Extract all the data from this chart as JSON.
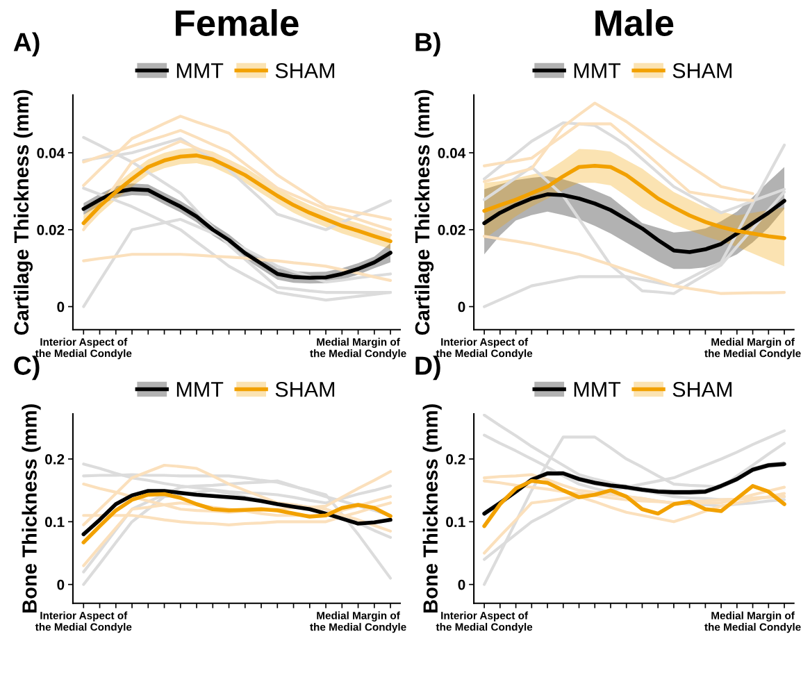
{
  "chart_data": [
    {
      "type": "line",
      "title": "Female",
      "ylabel": "Cartilage Thickness (mm)",
      "annotations": [
        "A)"
      ],
      "legend": "top",
      "categories": [
        "Interior Aspect of\nthe Medial Condyle",
        null,
        null,
        null,
        null,
        null,
        null,
        null,
        null,
        null,
        null,
        null,
        null,
        null,
        null,
        null,
        null,
        "Medial Margin of\nthe Medial Condyle",
        null,
        null
      ],
      "ylim": [
        -0.006,
        0.055
      ],
      "yticks": [
        0,
        0.02,
        0.04
      ],
      "series": [
        {
          "color": "#dcdcdc",
          "values": [
            0.044,
            0.0419,
            0.0397,
            0.0376,
            0.0349,
            0.0322,
            0.0295,
            0.025,
            0.0205,
            0.016,
            0.0123,
            0.0087,
            0.005,
            0.0046,
            0.0041,
            0.0037,
            0.0037,
            0.0037,
            0.0037,
            0.0037
          ]
        },
        {
          "color": "#dcdcdc",
          "values": [
            0,
            0.0067,
            0.0133,
            0.02,
            0.0209,
            0.0218,
            0.0227,
            0.0209,
            0.0191,
            0.0173,
            0.015,
            0.0128,
            0.0105,
            0.0091,
            0.0078,
            0.0064,
            0.0069,
            0.0075,
            0.008,
            0.0085
          ]
        },
        {
          "color": "#dcdcdc",
          "values": [
            0.038,
            0.0387,
            0.0393,
            0.04,
            0.0412,
            0.0425,
            0.0437,
            0.041,
            0.0383,
            0.0356,
            0.0317,
            0.0279,
            0.024,
            0.0227,
            0.0213,
            0.02,
            0.0219,
            0.0238,
            0.0256,
            0.0275
          ]
        },
        {
          "color": "#dcdcdc",
          "values": [
            0.0308,
            0.0292,
            0.0276,
            0.026,
            0.024,
            0.022,
            0.02,
            0.0168,
            0.0137,
            0.0105,
            0.0082,
            0.006,
            0.0037,
            0.003,
            0.0024,
            0.0017,
            0.0022,
            0.0027,
            0.0032,
            0.0037
          ]
        },
        {
          "color": "#fbe0bc",
          "values": [
            0.0119,
            0.0125,
            0.013,
            0.0136,
            0.0136,
            0.0136,
            0.0136,
            0.0134,
            0.0131,
            0.0129,
            0.0126,
            0.0122,
            0.0119,
            0.0114,
            0.011,
            0.0105,
            0.0096,
            0.0087,
            0.0077,
            0.0068
          ]
        },
        {
          "color": "#fbe0bc",
          "values": [
            0.0315,
            0.0356,
            0.0396,
            0.0437,
            0.0456,
            0.0476,
            0.0495,
            0.048,
            0.0466,
            0.0451,
            0.0415,
            0.0378,
            0.0342,
            0.0315,
            0.0288,
            0.0261,
            0.0253,
            0.0244,
            0.0236,
            0.0227
          ]
        },
        {
          "color": "#fbe0bc",
          "values": [
            0.02,
            0.0259,
            0.0317,
            0.0376,
            0.0394,
            0.0412,
            0.043,
            0.0412,
            0.0394,
            0.0376,
            0.0347,
            0.0317,
            0.0288,
            0.0268,
            0.0247,
            0.0227,
            0.0217,
            0.0206,
            0.0196,
            0.0186
          ]
        },
        {
          "color": "#fbe0bc",
          "values": [
            0.0376,
            0.039,
            0.0403,
            0.0417,
            0.0431,
            0.0444,
            0.0458,
            0.044,
            0.0421,
            0.0403,
            0.0371,
            0.034,
            0.0308,
            0.029,
            0.0272,
            0.0254,
            0.024,
            0.0227,
            0.0213,
            0.02
          ]
        },
        {
          "name": "MMT",
          "color": "#000000",
          "values": [
            0.0254,
            0.0278,
            0.0298,
            0.0305,
            0.0303,
            0.0281,
            0.026,
            0.0234,
            0.02,
            0.0173,
            0.0139,
            0.0112,
            0.0085,
            0.0077,
            0.0075,
            0.0076,
            0.0085,
            0.0098,
            0.0115,
            0.014
          ],
          "lower": [
            0.0239,
            0.0263,
            0.0283,
            0.029,
            0.0288,
            0.0266,
            0.0245,
            0.0219,
            0.0185,
            0.0158,
            0.0124,
            0.0097,
            0.007,
            0.0062,
            0.006,
            0.0061,
            0.007,
            0.0083,
            0.01,
            0.0115
          ],
          "upper": [
            0.0269,
            0.0293,
            0.0313,
            0.032,
            0.0318,
            0.0296,
            0.0275,
            0.0249,
            0.0215,
            0.0188,
            0.0154,
            0.0127,
            0.01,
            0.0092,
            0.009,
            0.0091,
            0.01,
            0.0113,
            0.013,
            0.0165
          ]
        },
        {
          "name": "SHAM",
          "color": "#f2a100",
          "values": [
            0.0217,
            0.0261,
            0.0298,
            0.0332,
            0.0363,
            0.038,
            0.039,
            0.0393,
            0.0383,
            0.0363,
            0.0342,
            0.0315,
            0.0288,
            0.0264,
            0.0244,
            0.0227,
            0.021,
            0.0197,
            0.0183,
            0.017
          ],
          "lower": [
            0.0197,
            0.0241,
            0.0278,
            0.0312,
            0.0343,
            0.036,
            0.037,
            0.0373,
            0.0363,
            0.0343,
            0.0322,
            0.0295,
            0.0268,
            0.0244,
            0.0224,
            0.0207,
            0.019,
            0.0177,
            0.0163,
            0.015
          ],
          "upper": [
            0.0237,
            0.0281,
            0.0318,
            0.0352,
            0.0383,
            0.04,
            0.041,
            0.0413,
            0.0403,
            0.0383,
            0.0362,
            0.0335,
            0.0308,
            0.0284,
            0.0264,
            0.0247,
            0.023,
            0.0217,
            0.0203,
            0.019
          ]
        }
      ]
    },
    {
      "type": "line",
      "title": "Male",
      "ylabel": "Cartilage Thickness (mm)",
      "annotations": [
        "B)"
      ],
      "legend": "top",
      "categories": [
        "Interior Aspect of\nthe Medial Condyle",
        null,
        null,
        null,
        null,
        null,
        null,
        null,
        null,
        null,
        null,
        null,
        null,
        null,
        null,
        null,
        null,
        "Medial Margin of\nthe Medial Condyle",
        null,
        null
      ],
      "ylim": [
        -0.006,
        0.055
      ],
      "yticks": [
        0,
        0.02,
        0.04
      ],
      "series": [
        {
          "color": "#dcdcdc",
          "values": [
            0,
            0.0018,
            0.0036,
            0.0054,
            0.0062,
            0.007,
            0.0078,
            0.0078,
            0.0078,
            0.0078,
            0.007,
            0.0062,
            0.0054,
            0.0074,
            0.0095,
            0.0115,
            0.0191,
            0.0268,
            0.0344,
            0.042
          ]
        },
        {
          "color": "#dcdcdc",
          "values": [
            0.0332,
            0.0365,
            0.0397,
            0.043,
            0.0454,
            0.0478,
            0.0475,
            0.0471,
            0.0446,
            0.042,
            0.0384,
            0.0348,
            0.0312,
            0.0289,
            0.0267,
            0.0244,
            0.0259,
            0.0275,
            0.029,
            0.0305
          ]
        },
        {
          "color": "#dcdcdc",
          "values": [
            0.0278,
            0.0306,
            0.0335,
            0.0363,
            0.0326,
            0.0288,
            0.0228,
            0.0168,
            0.0108,
            0.0075,
            0.0041,
            0.0038,
            0.0034,
            0.0059,
            0.0083,
            0.0108,
            0.0156,
            0.0203,
            0.0251,
            0.0298
          ]
        },
        {
          "color": "#fbe0bc",
          "values": [
            0.0183,
            0.0176,
            0.017,
            0.0163,
            0.0154,
            0.0145,
            0.0136,
            0.0122,
            0.0109,
            0.0095,
            0.0081,
            0.0068,
            0.0054,
            0.0047,
            0.0041,
            0.0034,
            0.0035,
            0.0036,
            0.0036,
            0.0037
          ]
        },
        {
          "color": "#fbe0bc",
          "values": [
            0.0325,
            0.0336,
            0.0348,
            0.0359,
            0.0414,
            0.0468,
            0.0499,
            0.0529,
            0.0505,
            0.0481,
            0.0452,
            0.0422,
            0.0393,
            0.0366,
            0.0339,
            0.0312,
            0.0303,
            0.0294,
            null,
            null
          ]
        },
        {
          "color": "#fbe0bc",
          "values": [
            0.0366,
            0.0373,
            0.0379,
            0.0386,
            0.0416,
            0.0445,
            0.0475,
            0.0475,
            0.0475,
            0.0441,
            0.0407,
            0.0371,
            0.0334,
            0.0298,
            0.0291,
            0.0285,
            0.0278,
            0.0276,
            null,
            null
          ]
        },
        {
          "name": "MMT",
          "color": "#000000",
          "values": [
            0.0217,
            0.0244,
            0.0264,
            0.0281,
            0.0292,
            0.029,
            0.0281,
            0.0268,
            0.0251,
            0.0227,
            0.0203,
            0.0173,
            0.0146,
            0.0142,
            0.0149,
            0.0163,
            0.019,
            0.0217,
            0.0244,
            0.0275
          ],
          "lower": [
            0.0136,
            0.0185,
            0.0224,
            0.0238,
            0.0247,
            0.0238,
            0.0227,
            0.021,
            0.019,
            0.0166,
            0.0142,
            0.0118,
            0.0098,
            0.0098,
            0.0102,
            0.0117,
            0.0136,
            0.0167,
            0.0205,
            0.0254
          ],
          "upper": [
            0.0305,
            0.0318,
            0.0329,
            0.0335,
            0.0339,
            0.0331,
            0.0319,
            0.0302,
            0.0285,
            0.0252,
            0.0217,
            0.0205,
            0.0193,
            0.0196,
            0.0203,
            0.0222,
            0.0247,
            0.0285,
            0.0325,
            0.0363
          ]
        },
        {
          "name": "SHAM",
          "color": "#f2a100",
          "values": [
            0.0249,
            0.0264,
            0.0278,
            0.0295,
            0.0312,
            0.0339,
            0.0363,
            0.0366,
            0.0363,
            0.0342,
            0.0312,
            0.0281,
            0.0258,
            0.0237,
            0.022,
            0.0207,
            0.0197,
            0.019,
            0.0183,
            0.0178
          ],
          "lower": [
            0.0176,
            0.0205,
            0.0235,
            0.026,
            0.0281,
            0.0303,
            0.0322,
            0.0322,
            0.0315,
            0.0287,
            0.0258,
            0.0236,
            0.0214,
            0.0198,
            0.0183,
            0.017,
            0.0156,
            0.0138,
            0.0121,
            0.0105
          ],
          "upper": [
            0.0322,
            0.0326,
            0.0334,
            0.0343,
            0.0353,
            0.038,
            0.041,
            0.0408,
            0.0403,
            0.0381,
            0.0359,
            0.0328,
            0.0298,
            0.0278,
            0.0258,
            0.0247,
            0.0237,
            0.0244,
            0.0251,
            0.0258
          ]
        }
      ]
    },
    {
      "type": "line",
      "ylabel": "Bone Thickness (mm)",
      "annotations": [
        "C)"
      ],
      "legend": "top",
      "categories": [
        "Interior Aspect of\nthe Medial Condyle",
        null,
        null,
        null,
        null,
        null,
        null,
        null,
        null,
        null,
        null,
        null,
        null,
        null,
        null,
        null,
        null,
        "Medial Margin of\nthe Medial Condyle",
        null,
        null
      ],
      "ylim": [
        -0.03,
        0.272
      ],
      "yticks": [
        0,
        0.1,
        0.2
      ],
      "series": [
        {
          "color": "#dcdcdc",
          "values": [
            0.192,
            0.185,
            0.177,
            0.17,
            0.166,
            0.161,
            0.157,
            0.154,
            0.151,
            0.148,
            0.146,
            0.145,
            0.143,
            0.139,
            0.134,
            0.13,
            0.137,
            0.144,
            0.15,
            0.157
          ]
        },
        {
          "color": "#dcdcdc",
          "values": [
            0.173,
            0.174,
            0.174,
            0.175,
            0.174,
            0.174,
            0.173,
            0.173,
            0.173,
            0.173,
            0.17,
            0.166,
            0.163,
            0.156,
            0.15,
            0.143,
            0.112,
            0.08,
            0.045,
            0.01
          ]
        },
        {
          "color": "#dcdcdc",
          "values": [
            0,
            0.033,
            0.067,
            0.1,
            0.12,
            0.14,
            0.143,
            0.147,
            0.15,
            0.145,
            0.14,
            0.135,
            0.13,
            0.127,
            0.123,
            0.12,
            0.109,
            0.098,
            0.086,
            0.075
          ]
        },
        {
          "color": "#dcdcdc",
          "values": [
            0.02,
            0.053,
            0.087,
            0.12,
            0.132,
            0.143,
            0.155,
            0.157,
            0.158,
            0.16,
            0.162,
            0.163,
            0.165,
            0.157,
            0.148,
            0.14,
            0.133,
            0.125,
            0.118,
            0.11
          ]
        },
        {
          "color": "#fbe0bc",
          "values": [
            0.16,
            0.153,
            0.147,
            0.14,
            0.133,
            0.127,
            0.12,
            0.118,
            0.117,
            0.115,
            0.117,
            0.118,
            0.12,
            0.122,
            0.123,
            0.125,
            0.139,
            0.153,
            0.166,
            0.18
          ]
        },
        {
          "color": "#fbe0bc",
          "values": [
            0.095,
            0.12,
            0.145,
            0.17,
            0.18,
            0.19,
            0.188,
            0.185,
            0.173,
            0.16,
            0.15,
            0.14,
            0.13,
            0.127,
            0.123,
            0.12,
            0.111,
            0.103,
            0.094,
            0.085
          ]
        },
        {
          "color": "#fbe0bc",
          "values": [
            0.11,
            0.11,
            0.11,
            0.11,
            0.107,
            0.103,
            0.1,
            0.098,
            0.097,
            0.095,
            0.097,
            0.098,
            0.1,
            0.1,
            0.1,
            0.1,
            0.108,
            0.115,
            0.123,
            0.13
          ]
        },
        {
          "color": "#fbe0bc",
          "values": [
            0.03,
            0.06,
            0.09,
            0.12,
            0.123,
            0.127,
            0.13,
            0.127,
            0.123,
            0.12,
            0.117,
            0.113,
            0.11,
            0.11,
            0.11,
            0.11,
            0.118,
            0.125,
            0.133,
            0.14
          ]
        },
        {
          "name": "MMT",
          "color": "#000000",
          "values": [
            0.08,
            0.103,
            0.128,
            0.142,
            0.149,
            0.149,
            0.146,
            0.143,
            0.141,
            0.139,
            0.137,
            0.133,
            0.128,
            0.124,
            0.12,
            0.113,
            0.105,
            0.097,
            0.099,
            0.103
          ]
        },
        {
          "name": "SHAM",
          "color": "#f2a100",
          "values": [
            0.067,
            0.093,
            0.118,
            0.135,
            0.143,
            0.144,
            0.138,
            0.128,
            0.12,
            0.118,
            0.119,
            0.12,
            0.118,
            0.113,
            0.108,
            0.11,
            0.122,
            0.127,
            0.122,
            0.109
          ]
        }
      ]
    },
    {
      "type": "line",
      "ylabel": "Bone Thickness (mm)",
      "annotations": [
        "D)"
      ],
      "legend": "top",
      "categories": [
        "Interior Aspect of\nthe Medial Condyle",
        null,
        null,
        null,
        null,
        null,
        null,
        null,
        null,
        null,
        null,
        null,
        null,
        null,
        null,
        null,
        null,
        "Medial Margin of\nthe Medial Condyle",
        null,
        null
      ],
      "ylim": [
        -0.03,
        0.272
      ],
      "yticks": [
        0,
        0.1,
        0.2
      ],
      "series": [
        {
          "color": "#dcdcdc",
          "values": [
            0.27,
            0.253,
            0.237,
            0.22,
            0.205,
            0.19,
            0.175,
            0.168,
            0.162,
            0.155,
            0.15,
            0.145,
            0.14,
            0.138,
            0.137,
            0.135,
            0.136,
            0.138,
            0.139,
            0.14
          ]
        },
        {
          "color": "#dcdcdc",
          "values": [
            0.238,
            0.225,
            0.213,
            0.2,
            0.187,
            0.173,
            0.16,
            0.153,
            0.147,
            0.14,
            0.137,
            0.133,
            0.13,
            0.128,
            0.127,
            0.125,
            0.128,
            0.13,
            0.133,
            0.135
          ]
        },
        {
          "color": "#dcdcdc",
          "values": [
            0,
            0.05,
            0.1,
            0.15,
            0.193,
            0.235,
            0.235,
            0.235,
            0.218,
            0.2,
            0.187,
            0.173,
            0.16,
            0.158,
            0.157,
            0.155,
            0.173,
            0.19,
            0.208,
            0.225
          ]
        },
        {
          "color": "#dcdcdc",
          "values": [
            0.04,
            0.06,
            0.08,
            0.1,
            0.113,
            0.127,
            0.14,
            0.145,
            0.15,
            0.155,
            0.16,
            0.165,
            0.17,
            0.18,
            0.19,
            0.2,
            0.211,
            0.223,
            0.234,
            0.245
          ]
        },
        {
          "color": "#fbe0bc",
          "values": [
            0.17,
            0.172,
            0.173,
            0.175,
            0.167,
            0.158,
            0.15,
            0.147,
            0.143,
            0.14,
            0.137,
            0.133,
            0.13,
            0.13,
            0.13,
            0.13,
            0.136,
            0.143,
            0.149,
            0.155
          ]
        },
        {
          "color": "#fbe0bc",
          "values": [
            0.05,
            0.077,
            0.103,
            0.13,
            0.133,
            0.137,
            0.14,
            0.132,
            0.123,
            0.115,
            0.11,
            0.105,
            0.1,
            0.108,
            0.117,
            0.125,
            0.13,
            0.135,
            0.14,
            0.145
          ]
        },
        {
          "color": "#fbe0bc",
          "values": [
            0.165,
            0.162,
            0.158,
            0.155,
            0.152,
            0.148,
            0.145,
            0.142,
            0.138,
            0.135,
            0.133,
            0.132,
            0.13,
            0.132,
            0.133,
            0.135,
            0.136,
            0.138,
            0.139,
            0.14
          ]
        },
        {
          "name": "MMT",
          "color": "#000000",
          "values": [
            0.113,
            0.13,
            0.148,
            0.167,
            0.177,
            0.177,
            0.168,
            0.162,
            0.158,
            0.155,
            0.151,
            0.148,
            0.147,
            0.147,
            0.148,
            0.157,
            0.168,
            0.183,
            0.19,
            0.192
          ],
          "lower": [
            0.109,
            0.126,
            0.144,
            0.163,
            0.173,
            0.173,
            0.164,
            0.158,
            0.154,
            0.151,
            0.147,
            0.144,
            0.143,
            0.143,
            0.144,
            0.153,
            0.164,
            0.179,
            0.186,
            0.188
          ],
          "upper": [
            0.117,
            0.134,
            0.152,
            0.171,
            0.181,
            0.181,
            0.172,
            0.166,
            0.162,
            0.159,
            0.155,
            0.152,
            0.151,
            0.151,
            0.152,
            0.161,
            0.172,
            0.187,
            0.194,
            0.196
          ]
        },
        {
          "name": "SHAM",
          "color": "#f2a100",
          "values": [
            0.093,
            0.128,
            0.153,
            0.165,
            0.162,
            0.15,
            0.139,
            0.143,
            0.15,
            0.14,
            0.12,
            0.113,
            0.128,
            0.132,
            0.12,
            0.117,
            0.137,
            0.157,
            0.148,
            0.128
          ]
        }
      ]
    }
  ]
}
